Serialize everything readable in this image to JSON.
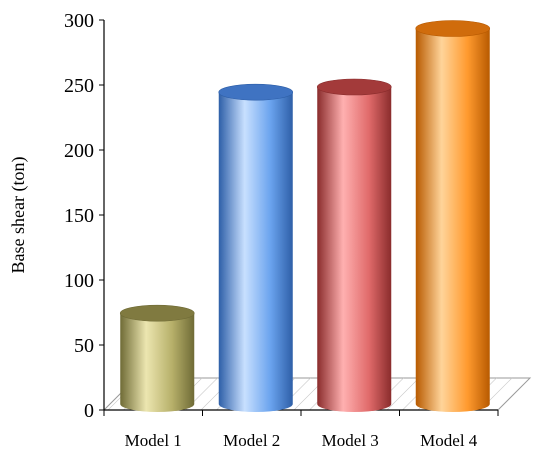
{
  "chart_data": {
    "type": "bar",
    "style": "3d-cylinder",
    "categories": [
      "Model 1",
      "Model 2",
      "Model 3",
      "Model 4"
    ],
    "values": [
      76,
      246,
      250,
      295
    ],
    "ylabel": "Base shear  (ton)",
    "ylim": [
      0,
      300
    ],
    "yticks": [
      "0",
      "50",
      "100",
      "150",
      "200",
      "250",
      "300"
    ],
    "grid": false,
    "legend": "none",
    "colors": [
      {
        "dark": "#6f6b36",
        "mid": "#b7b06a",
        "light": "#ece6b0",
        "top": "#807a40"
      },
      {
        "dark": "#2e5fa8",
        "mid": "#6aa3ee",
        "light": "#c8e0ff",
        "top": "#3f73c2"
      },
      {
        "dark": "#8a2c2c",
        "mid": "#e06a6a",
        "light": "#ffb0b0",
        "top": "#a33a3a"
      },
      {
        "dark": "#b85a00",
        "mid": "#ff9a2e",
        "light": "#ffd49a",
        "top": "#d06c0c"
      }
    ]
  }
}
